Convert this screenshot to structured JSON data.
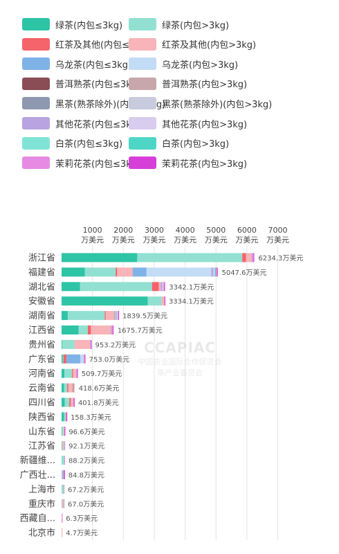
{
  "legend": [
    {
      "label": "绿茶(内包≤3kg)",
      "color": "#2ec4a6"
    },
    {
      "label": "绿茶(内包>3kg)",
      "color": "#92e0d1"
    },
    {
      "label": "红茶及其他(内包≤3kg)",
      "color": "#f4646a"
    },
    {
      "label": "红茶及其他(内包>3kg)",
      "color": "#f8b4b8"
    },
    {
      "label": "乌龙茶(内包≤3kg)",
      "color": "#7fb3e8"
    },
    {
      "label": "乌龙茶(内包>3kg)",
      "color": "#c3dcf5"
    },
    {
      "label": "普洱熟茶(内包≤3kg)",
      "color": "#8b4d55"
    },
    {
      "label": "普洱熟茶(内包>3kg)",
      "color": "#c7a7aa"
    },
    {
      "label": "黑茶(熟茶除外)(内包≤3kg)",
      "color": "#8e98b0"
    },
    {
      "label": "黑茶(熟茶除外)(内包>3kg)",
      "color": "#c8cbdd"
    },
    {
      "label": "其他花茶(内包≤3kg)",
      "color": "#b9a3e0"
    },
    {
      "label": "其他花茶(内包>3kg)",
      "color": "#d8cdee"
    },
    {
      "label": "白茶(内包≤3kg)",
      "color": "#7fe4d6"
    },
    {
      "label": "白茶(内包>3kg)",
      "color": "#4dd6c6"
    },
    {
      "label": "茉莉花茶(内包≤3kg)",
      "color": "#e68be4"
    },
    {
      "label": "茉莉花茶(内包>3kg)",
      "color": "#d63fd8"
    }
  ],
  "watermark": {
    "logo": "CCAPIAC",
    "line1": "中国农业国际合作促进会",
    "line2": "茶产业委员会"
  },
  "chart_data": {
    "type": "bar",
    "orientation": "horizontal",
    "stacked": true,
    "xlim": [
      0,
      7500
    ],
    "x_ticks": [
      {
        "value": 1000,
        "line1": "1000",
        "line2": "万美元"
      },
      {
        "value": 2000,
        "line1": "2000",
        "line2": "万美元"
      },
      {
        "value": 3000,
        "line1": "3000",
        "line2": "万美元"
      },
      {
        "value": 4000,
        "line1": "4000",
        "line2": "万美元"
      },
      {
        "value": 5000,
        "line1": "5000",
        "line2": "万美元"
      },
      {
        "value": 6000,
        "line1": "6000",
        "line2": "万美元"
      },
      {
        "value": 7000,
        "line1": "7000",
        "line2": "万美元"
      }
    ],
    "categories": [
      "浙江省",
      "福建省",
      "湖北省",
      "安徽省",
      "湖南省",
      "江西省",
      "贵州省",
      "广东省",
      "河南省",
      "云南省",
      "四川省",
      "陕西省",
      "山东省",
      "江苏省",
      "新疆维...",
      "广西壮...",
      "上海市",
      "重庆市",
      "西藏自...",
      "北京市"
    ],
    "totals": [
      6234.3,
      5047.6,
      3342.1,
      3334.1,
      1839.5,
      1675.7,
      953.2,
      753.0,
      509.7,
      418.6,
      401.8,
      158.3,
      96.6,
      92.1,
      88.2,
      84.8,
      67.2,
      67.0,
      6.3,
      4.7
    ],
    "total_labels": [
      "6234.3万美元",
      "5047.6万美元",
      "3342.1万美元",
      "3334.1万美元",
      "1839.5万美元",
      "1675.7万美元",
      "953.2万美元",
      "753.0万美元",
      "509.7万美元",
      "418.6万美元",
      "401.8万美元",
      "158.3万美元",
      "96.6万美元",
      "92.1万美元",
      "88.2万美元",
      "84.8万美元",
      "67.2万美元",
      "67.0万美元",
      "6.3万美元",
      "4.7万美元"
    ],
    "series": [
      {
        "name": "绿茶(内包≤3kg)",
        "values": [
          2450,
          750,
          600,
          2790,
          200,
          550,
          20,
          40,
          90,
          80,
          100,
          80,
          10,
          10,
          0,
          0,
          0,
          0,
          0,
          0
        ]
      },
      {
        "name": "绿茶(内包>3kg)",
        "values": [
          3400,
          1000,
          2330,
          450,
          1200,
          300,
          400,
          20,
          250,
          100,
          150,
          50,
          50,
          20,
          85,
          20,
          60,
          20,
          3,
          0
        ]
      },
      {
        "name": "红茶及其他(内包≤3kg)",
        "values": [
          120,
          50,
          220,
          0,
          30,
          100,
          0,
          100,
          30,
          40,
          50,
          10,
          0,
          0,
          0,
          0,
          0,
          0,
          0,
          0
        ]
      },
      {
        "name": "红茶及其他(内包>3kg)",
        "values": [
          180,
          500,
          60,
          90,
          280,
          650,
          500,
          0,
          100,
          150,
          80,
          10,
          30,
          60,
          0,
          10,
          5,
          45,
          2,
          4.7
        ]
      },
      {
        "name": "乌龙茶(内包≤3kg)",
        "values": [
          0,
          450,
          0,
          0,
          0,
          0,
          0,
          450,
          0,
          0,
          0,
          0,
          0,
          0,
          0,
          0,
          0,
          0,
          0,
          0
        ]
      },
      {
        "name": "乌龙茶(内包>3kg)",
        "values": [
          0,
          2100,
          0,
          0,
          0,
          0,
          0,
          90,
          0,
          0,
          0,
          0,
          0,
          0,
          0,
          0,
          0,
          0,
          0,
          0
        ]
      },
      {
        "name": "普洱熟茶(内包≤3kg)",
        "values": [
          0,
          0,
          0,
          0,
          0,
          0,
          0,
          0,
          0,
          8,
          0,
          0,
          0,
          0,
          0,
          0,
          0,
          0,
          0,
          0
        ]
      },
      {
        "name": "普洱熟茶(内包>3kg)",
        "values": [
          0,
          0,
          0,
          0,
          0,
          0,
          0,
          0,
          0,
          40,
          0,
          0,
          0,
          0,
          0,
          0,
          0,
          0,
          0,
          0
        ]
      },
      {
        "name": "黑茶(熟茶除外)(内包≤3kg)",
        "values": [
          0,
          0,
          0,
          0,
          20,
          0,
          0,
          0,
          0,
          0,
          0,
          0,
          0,
          0,
          0,
          0,
          0,
          0,
          0,
          0
        ]
      },
      {
        "name": "黑茶(熟茶除外)(内包>3kg)",
        "values": [
          0,
          0,
          0,
          0,
          40,
          0,
          0,
          0,
          0,
          0,
          0,
          0,
          0,
          0,
          0,
          0,
          0,
          0,
          0,
          0
        ]
      },
      {
        "name": "其他花茶(内包≤3kg)",
        "values": [
          20,
          60,
          50,
          0,
          20,
          25,
          8,
          10,
          10,
          0,
          10,
          4,
          3,
          2,
          0,
          50,
          2,
          2,
          0,
          0
        ]
      },
      {
        "name": "其他花茶(内包>3kg)",
        "values": [
          0,
          40,
          40,
          0,
          40,
          0,
          15,
          20,
          10,
          0,
          0,
          0,
          0,
          0,
          0,
          0,
          0,
          0,
          0,
          0
        ]
      },
      {
        "name": "白茶(内包≤3kg)",
        "values": [
          0,
          20,
          0,
          0,
          0,
          0,
          0,
          0,
          0,
          0,
          0,
          0,
          0,
          0,
          0,
          0,
          0,
          0,
          0,
          0
        ]
      },
      {
        "name": "白茶(内包>3kg)",
        "values": [
          0,
          20,
          0,
          0,
          0,
          0,
          0,
          0,
          0,
          0,
          0,
          0,
          0,
          0,
          0,
          0,
          0,
          0,
          0,
          0
        ]
      },
      {
        "name": "茉莉花茶(内包≤3kg)",
        "values": [
          40,
          40,
          22,
          2,
          4,
          30,
          5,
          15,
          10,
          0,
          6,
          2,
          1,
          0,
          3,
          2,
          0,
          0,
          1,
          0
        ]
      },
      {
        "name": "茉莉花茶(内包>3kg)",
        "values": [
          20,
          20,
          20,
          2,
          5,
          20,
          5,
          8,
          9,
          0,
          5,
          2,
          2,
          0,
          0,
          2,
          0,
          0,
          0,
          0
        ]
      }
    ]
  }
}
